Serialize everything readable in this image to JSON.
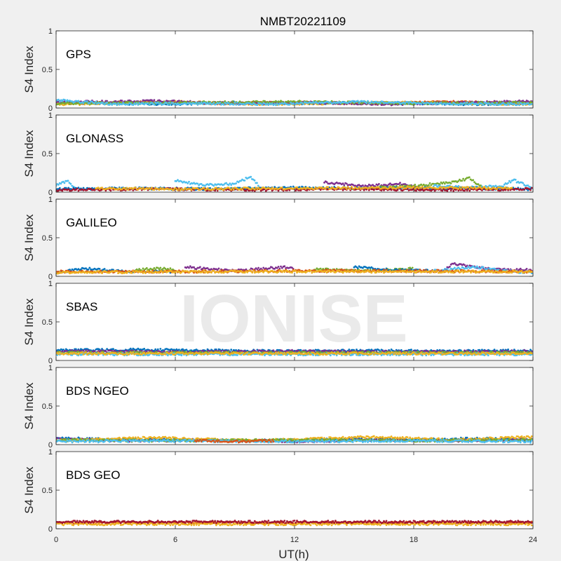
{
  "figure": {
    "title": "NMBT20221109",
    "xlabel": "UT(h)",
    "ylabel": "S4 Index",
    "watermark": "IONISE",
    "background": "#f0f0f0",
    "axes_background": "#ffffff",
    "axis_color": "#262626"
  },
  "series_colors": [
    "#0072bd",
    "#d95319",
    "#edb120",
    "#7e2f8e",
    "#77ac30",
    "#4dbeee",
    "#a2142f"
  ],
  "chart_data": {
    "type": "scatter",
    "xlim": [
      0,
      24
    ],
    "ylim": [
      0,
      1
    ],
    "xticks": [
      0,
      6,
      12,
      18,
      24
    ],
    "xtick_labels": [
      "0",
      "6",
      "12",
      "18",
      "24"
    ],
    "yticks": [
      0,
      0.5,
      1
    ],
    "ytick_labels": [
      "0",
      "0.5",
      "1"
    ],
    "grid": false,
    "panels": [
      {
        "name": "GPS",
        "tracks": [
          {
            "color_index": 0,
            "points": [
              [
                0,
                0.07
              ],
              [
                3,
                0.06
              ],
              [
                6,
                0.05
              ],
              [
                9,
                0.07
              ],
              [
                12,
                0.06
              ],
              [
                15,
                0.07
              ],
              [
                18,
                0.06
              ],
              [
                21,
                0.05
              ],
              [
                24,
                0.06
              ]
            ]
          },
          {
            "color_index": 1,
            "points": [
              [
                0,
                0.06
              ],
              [
                4,
                0.08
              ],
              [
                8,
                0.06
              ],
              [
                12,
                0.07
              ],
              [
                16,
                0.06
              ],
              [
                20,
                0.08
              ],
              [
                24,
                0.06
              ]
            ]
          },
          {
            "color_index": 2,
            "points": [
              [
                0,
                0.05
              ],
              [
                3,
                0.06
              ],
              [
                6,
                0.08
              ],
              [
                10,
                0.05
              ],
              [
                14,
                0.06
              ],
              [
                18,
                0.07
              ],
              [
                24,
                0.05
              ]
            ]
          },
          {
            "color_index": 3,
            "points": [
              [
                0,
                0.08
              ],
              [
                5,
                0.09
              ],
              [
                9,
                0.06
              ],
              [
                13,
                0.07
              ],
              [
                17,
                0.05
              ],
              [
                21,
                0.07
              ],
              [
                24,
                0.09
              ]
            ]
          },
          {
            "color_index": 4,
            "points": [
              [
                0,
                0.06
              ],
              [
                6,
                0.07
              ],
              [
                12,
                0.08
              ],
              [
                18,
                0.06
              ],
              [
                24,
                0.07
              ]
            ]
          },
          {
            "color_index": 5,
            "points": [
              [
                0,
                0.1
              ],
              [
                3,
                0.05
              ],
              [
                7,
                0.06
              ],
              [
                11,
                0.05
              ],
              [
                15,
                0.08
              ],
              [
                19,
                0.06
              ],
              [
                24,
                0.05
              ]
            ]
          }
        ]
      },
      {
        "name": "GLONASS",
        "tracks": [
          {
            "color_index": 5,
            "points": [
              [
                0,
                0.09
              ],
              [
                0.6,
                0.15
              ],
              [
                1,
                0.03
              ]
            ]
          },
          {
            "color_index": 5,
            "points": [
              [
                6,
                0.15
              ],
              [
                7.5,
                0.09
              ],
              [
                9,
                0.11
              ],
              [
                9.8,
                0.2
              ],
              [
                10.3,
                0.05
              ]
            ]
          },
          {
            "color_index": 3,
            "points": [
              [
                13.5,
                0.13
              ],
              [
                15.5,
                0.08
              ],
              [
                17.5,
                0.11
              ],
              [
                18.5,
                0.03
              ]
            ]
          },
          {
            "color_index": 4,
            "points": [
              [
                16,
                0.06
              ],
              [
                18,
                0.08
              ],
              [
                20,
                0.13
              ],
              [
                20.8,
                0.18
              ],
              [
                21.5,
                0.05
              ]
            ]
          },
          {
            "color_index": 5,
            "points": [
              [
                19,
                0.08
              ],
              [
                21,
                0.06
              ],
              [
                22.5,
                0.08
              ],
              [
                23,
                0.16
              ],
              [
                24,
                0.05
              ]
            ]
          },
          {
            "color_index": 0,
            "points": [
              [
                0,
                0.04
              ],
              [
                4,
                0.05
              ],
              [
                8,
                0.04
              ],
              [
                12,
                0.06
              ],
              [
                16,
                0.05
              ],
              [
                20,
                0.05
              ],
              [
                24,
                0.04
              ]
            ]
          },
          {
            "color_index": 6,
            "points": [
              [
                0,
                0.03
              ],
              [
                5,
                0.04
              ],
              [
                10,
                0.03
              ],
              [
                15,
                0.04
              ],
              [
                20,
                0.03
              ],
              [
                24,
                0.04
              ]
            ]
          },
          {
            "color_index": 2,
            "points": [
              [
                2,
                0.05
              ],
              [
                6,
                0.04
              ],
              [
                12,
                0.05
              ],
              [
                18,
                0.06
              ],
              [
                23,
                0.05
              ]
            ]
          }
        ]
      },
      {
        "name": "GALILEO",
        "tracks": [
          {
            "color_index": 0,
            "points": [
              [
                0,
                0.05
              ],
              [
                1.5,
                0.1
              ],
              [
                3,
                0.07
              ],
              [
                6,
                0.06
              ]
            ]
          },
          {
            "color_index": 3,
            "points": [
              [
                6.5,
                0.12
              ],
              [
                9,
                0.07
              ],
              [
                11.5,
                0.12
              ],
              [
                12,
                0.1
              ]
            ]
          },
          {
            "color_index": 4,
            "points": [
              [
                4,
                0.08
              ],
              [
                5,
                0.1
              ],
              [
                6,
                0.09
              ]
            ]
          },
          {
            "color_index": 4,
            "points": [
              [
                13,
                0.09
              ],
              [
                16,
                0.07
              ],
              [
                18,
                0.1
              ]
            ]
          },
          {
            "color_index": 0,
            "points": [
              [
                15,
                0.12
              ],
              [
                17,
                0.08
              ],
              [
                19,
                0.07
              ]
            ]
          },
          {
            "color_index": 3,
            "points": [
              [
                19.5,
                0.08
              ],
              [
                20,
                0.16
              ],
              [
                22,
                0.09
              ],
              [
                24,
                0.08
              ]
            ]
          },
          {
            "color_index": 5,
            "points": [
              [
                19,
                0.07
              ],
              [
                21,
                0.12
              ],
              [
                23,
                0.06
              ],
              [
                24,
                0.05
              ]
            ]
          },
          {
            "color_index": 1,
            "points": [
              [
                0,
                0.06
              ],
              [
                6,
                0.06
              ],
              [
                12,
                0.07
              ],
              [
                18,
                0.07
              ],
              [
                24,
                0.06
              ]
            ]
          },
          {
            "color_index": 2,
            "points": [
              [
                0,
                0.05
              ],
              [
                8,
                0.06
              ],
              [
                16,
                0.06
              ],
              [
                24,
                0.06
              ]
            ]
          }
        ]
      },
      {
        "name": "SBAS",
        "tracks": [
          {
            "color_index": 0,
            "points": [
              [
                0,
                0.13
              ],
              [
                4,
                0.14
              ],
              [
                8,
                0.13
              ],
              [
                12,
                0.12
              ],
              [
                16,
                0.13
              ],
              [
                20,
                0.12
              ],
              [
                24,
                0.13
              ]
            ]
          },
          {
            "color_index": 3,
            "points": [
              [
                0,
                0.12
              ],
              [
                6,
                0.11
              ],
              [
                12,
                0.12
              ],
              [
                18,
                0.11
              ],
              [
                24,
                0.12
              ]
            ]
          },
          {
            "color_index": 4,
            "points": [
              [
                0,
                0.1
              ],
              [
                6,
                0.1
              ],
              [
                12,
                0.1
              ],
              [
                18,
                0.1
              ],
              [
                24,
                0.1
              ]
            ]
          },
          {
            "color_index": 5,
            "points": [
              [
                0,
                0.08
              ],
              [
                6,
                0.08
              ],
              [
                12,
                0.08
              ],
              [
                18,
                0.08
              ],
              [
                24,
                0.08
              ]
            ]
          },
          {
            "color_index": 2,
            "points": [
              [
                0,
                0.09
              ],
              [
                8,
                0.09
              ],
              [
                16,
                0.09
              ],
              [
                24,
                0.09
              ]
            ]
          }
        ]
      },
      {
        "name": "BDS NGEO",
        "tracks": [
          {
            "color_index": 0,
            "points": [
              [
                0,
                0.09
              ],
              [
                3,
                0.06
              ],
              [
                6,
                0.07
              ],
              [
                9,
                0.05
              ],
              [
                12,
                0.06
              ],
              [
                15,
                0.07
              ],
              [
                18,
                0.06
              ],
              [
                21,
                0.08
              ],
              [
                24,
                0.06
              ]
            ]
          },
          {
            "color_index": 3,
            "points": [
              [
                0,
                0.07
              ],
              [
                4,
                0.05
              ],
              [
                8,
                0.06
              ],
              [
                12,
                0.04
              ],
              [
                16,
                0.06
              ],
              [
                20,
                0.05
              ],
              [
                24,
                0.07
              ]
            ]
          },
          {
            "color_index": 2,
            "points": [
              [
                0,
                0.05
              ],
              [
                5,
                0.09
              ],
              [
                10,
                0.05
              ],
              [
                16,
                0.1
              ],
              [
                20,
                0.06
              ],
              [
                24,
                0.1
              ]
            ]
          },
          {
            "color_index": 4,
            "points": [
              [
                0,
                0.06
              ],
              [
                6,
                0.05
              ],
              [
                12,
                0.06
              ],
              [
                18,
                0.05
              ],
              [
                24,
                0.06
              ]
            ]
          },
          {
            "color_index": 5,
            "points": [
              [
                0,
                0.04
              ],
              [
                6,
                0.05
              ],
              [
                12,
                0.04
              ],
              [
                18,
                0.05
              ],
              [
                24,
                0.04
              ]
            ]
          },
          {
            "color_index": 1,
            "points": [
              [
                7,
                0.05
              ],
              [
                9,
                0.04
              ],
              [
                11,
                0.05
              ]
            ]
          }
        ]
      },
      {
        "name": "BDS GEO",
        "tracks": [
          {
            "color_index": 1,
            "points": [
              [
                0,
                0.08
              ],
              [
                6,
                0.08
              ],
              [
                12,
                0.08
              ],
              [
                18,
                0.08
              ],
              [
                24,
                0.08
              ]
            ]
          },
          {
            "color_index": 2,
            "points": [
              [
                0,
                0.06
              ],
              [
                6,
                0.06
              ],
              [
                12,
                0.06
              ],
              [
                18,
                0.06
              ],
              [
                24,
                0.06
              ]
            ]
          },
          {
            "color_index": 6,
            "points": [
              [
                0,
                0.09
              ],
              [
                8,
                0.09
              ],
              [
                16,
                0.09
              ],
              [
                24,
                0.09
              ]
            ]
          }
        ]
      }
    ]
  }
}
